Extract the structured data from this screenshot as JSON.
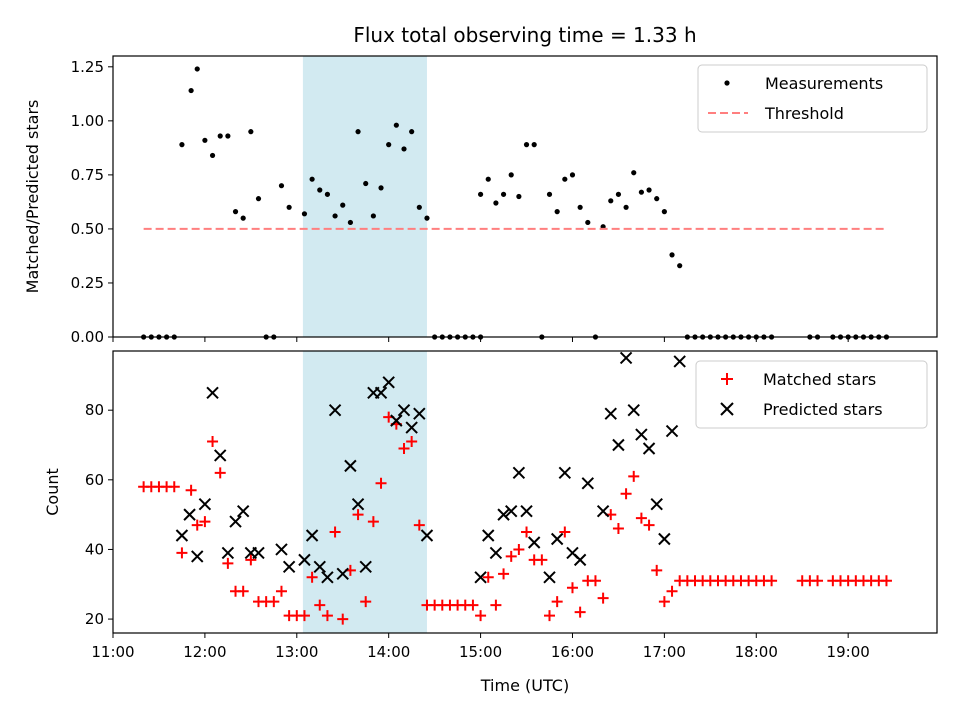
{
  "figure": {
    "title": "Flux total observing time = 1.33 h",
    "xlabel": "Time (UTC)",
    "x_tick_labels": [
      "11:00",
      "12:00",
      "13:00",
      "14:00",
      "15:00",
      "16:00",
      "17:00",
      "18:00",
      "19:00"
    ],
    "colors": {
      "measurement": "#000000",
      "threshold": "#ff7f7f",
      "matched": "#ff0000",
      "predicted": "#000000",
      "highlight_band": "#add8e6"
    }
  },
  "chart_data": [
    {
      "type": "scatter",
      "title": "Flux total observing time = 1.33 h",
      "xlabel": "",
      "ylabel": "Matched/Predicted stars",
      "xlim": [
        "11:00",
        "19:58"
      ],
      "ylim": [
        0,
        1.3
      ],
      "y_ticks": [
        "0.00",
        "0.25",
        "0.50",
        "0.75",
        "1.00",
        "1.25"
      ],
      "highlight_band": {
        "from": "13:04",
        "to": "14:25"
      },
      "legend": {
        "placement": "top-right",
        "entries": [
          "Measurements",
          "Threshold"
        ]
      },
      "threshold": {
        "name": "Threshold",
        "y": 0.5,
        "x_from": "11:20",
        "x_to": "19:25",
        "style": "dashed"
      },
      "series": [
        {
          "name": "Measurements",
          "marker": "dot",
          "points": [
            [
              "11:20",
              0
            ],
            [
              "11:25",
              0
            ],
            [
              "11:30",
              0
            ],
            [
              "11:35",
              0
            ],
            [
              "11:40",
              0
            ],
            [
              "11:45",
              0.89
            ],
            [
              "11:51",
              1.14
            ],
            [
              "11:55",
              1.24
            ],
            [
              "12:00",
              0.91
            ],
            [
              "12:05",
              0.84
            ],
            [
              "12:10",
              0.93
            ],
            [
              "12:15",
              0.93
            ],
            [
              "12:20",
              0.58
            ],
            [
              "12:25",
              0.55
            ],
            [
              "12:30",
              0.95
            ],
            [
              "12:35",
              0.64
            ],
            [
              "12:40",
              0
            ],
            [
              "12:45",
              0
            ],
            [
              "12:50",
              0.7
            ],
            [
              "12:55",
              0.6
            ],
            [
              "13:05",
              0.57
            ],
            [
              "13:10",
              0.73
            ],
            [
              "13:15",
              0.68
            ],
            [
              "13:20",
              0.66
            ],
            [
              "13:25",
              0.56
            ],
            [
              "13:30",
              0.61
            ],
            [
              "13:35",
              0.53
            ],
            [
              "13:40",
              0.95
            ],
            [
              "13:45",
              0.71
            ],
            [
              "13:50",
              0.56
            ],
            [
              "13:55",
              0.69
            ],
            [
              "14:00",
              0.89
            ],
            [
              "14:05",
              0.98
            ],
            [
              "14:10",
              0.87
            ],
            [
              "14:15",
              0.95
            ],
            [
              "14:20",
              0.6
            ],
            [
              "14:25",
              0.55
            ],
            [
              "14:30",
              0
            ],
            [
              "14:35",
              0
            ],
            [
              "14:40",
              0
            ],
            [
              "14:45",
              0
            ],
            [
              "14:50",
              0
            ],
            [
              "14:55",
              0
            ],
            [
              "15:00",
              0
            ],
            [
              "15:00",
              0.66
            ],
            [
              "15:05",
              0.73
            ],
            [
              "15:10",
              0.62
            ],
            [
              "15:15",
              0.66
            ],
            [
              "15:20",
              0.75
            ],
            [
              "15:25",
              0.65
            ],
            [
              "15:30",
              0.89
            ],
            [
              "15:35",
              0.89
            ],
            [
              "15:40",
              0
            ],
            [
              "15:45",
              0.66
            ],
            [
              "15:50",
              0.58
            ],
            [
              "15:55",
              0.73
            ],
            [
              "16:00",
              0.75
            ],
            [
              "16:05",
              0.6
            ],
            [
              "16:10",
              0.53
            ],
            [
              "16:15",
              0
            ],
            [
              "16:20",
              0.51
            ],
            [
              "16:25",
              0.63
            ],
            [
              "16:30",
              0.66
            ],
            [
              "16:35",
              0.6
            ],
            [
              "16:40",
              0.76
            ],
            [
              "16:45",
              0.67
            ],
            [
              "16:50",
              0.68
            ],
            [
              "16:55",
              0.64
            ],
            [
              "17:00",
              0.58
            ],
            [
              "17:05",
              0.38
            ],
            [
              "17:10",
              0.33
            ],
            [
              "17:15",
              0
            ],
            [
              "17:20",
              0
            ],
            [
              "17:25",
              0
            ],
            [
              "17:30",
              0
            ],
            [
              "17:35",
              0
            ],
            [
              "17:40",
              0
            ],
            [
              "17:45",
              0
            ],
            [
              "17:50",
              0
            ],
            [
              "17:55",
              0
            ],
            [
              "18:00",
              0
            ],
            [
              "18:05",
              0
            ],
            [
              "18:10",
              0
            ],
            [
              "18:35",
              0
            ],
            [
              "18:40",
              0
            ],
            [
              "18:50",
              0
            ],
            [
              "18:55",
              0
            ],
            [
              "19:00",
              0
            ],
            [
              "19:05",
              0
            ],
            [
              "19:10",
              0
            ],
            [
              "19:15",
              0
            ],
            [
              "19:20",
              0
            ],
            [
              "19:25",
              0
            ]
          ]
        }
      ]
    },
    {
      "type": "scatter",
      "title": "",
      "xlabel": "Time (UTC)",
      "ylabel": "Count",
      "xlim": [
        "11:00",
        "19:58"
      ],
      "ylim": [
        16,
        97
      ],
      "y_ticks": [
        "20",
        "40",
        "60",
        "80"
      ],
      "highlight_band": {
        "from": "13:04",
        "to": "14:25"
      },
      "legend": {
        "placement": "top-right",
        "entries": [
          "Matched stars",
          "Predicted stars"
        ]
      },
      "series": [
        {
          "name": "Matched stars",
          "marker": "plus",
          "points": [
            [
              "11:20",
              58
            ],
            [
              "11:25",
              58
            ],
            [
              "11:30",
              58
            ],
            [
              "11:35",
              58
            ],
            [
              "11:40",
              58
            ],
            [
              "11:45",
              39
            ],
            [
              "11:51",
              57
            ],
            [
              "11:55",
              47
            ],
            [
              "12:00",
              48
            ],
            [
              "12:05",
              71
            ],
            [
              "12:10",
              62
            ],
            [
              "12:15",
              36
            ],
            [
              "12:20",
              28
            ],
            [
              "12:25",
              28
            ],
            [
              "12:30",
              37
            ],
            [
              "12:35",
              25
            ],
            [
              "12:40",
              25
            ],
            [
              "12:45",
              25
            ],
            [
              "12:50",
              28
            ],
            [
              "12:55",
              21
            ],
            [
              "13:00",
              21
            ],
            [
              "13:05",
              21
            ],
            [
              "13:10",
              32
            ],
            [
              "13:15",
              24
            ],
            [
              "13:20",
              21
            ],
            [
              "13:25",
              45
            ],
            [
              "13:30",
              20
            ],
            [
              "13:35",
              34
            ],
            [
              "13:40",
              50
            ],
            [
              "13:45",
              25
            ],
            [
              "13:50",
              48
            ],
            [
              "13:55",
              59
            ],
            [
              "14:00",
              78
            ],
            [
              "14:05",
              76
            ],
            [
              "14:10",
              69
            ],
            [
              "14:15",
              71
            ],
            [
              "14:20",
              47
            ],
            [
              "14:25",
              24
            ],
            [
              "14:30",
              24
            ],
            [
              "14:35",
              24
            ],
            [
              "14:40",
              24
            ],
            [
              "14:45",
              24
            ],
            [
              "14:50",
              24
            ],
            [
              "14:55",
              24
            ],
            [
              "15:00",
              21
            ],
            [
              "15:05",
              32
            ],
            [
              "15:10",
              24
            ],
            [
              "15:15",
              33
            ],
            [
              "15:20",
              38
            ],
            [
              "15:25",
              40
            ],
            [
              "15:30",
              45
            ],
            [
              "15:35",
              37
            ],
            [
              "15:40",
              37
            ],
            [
              "15:45",
              21
            ],
            [
              "15:50",
              25
            ],
            [
              "15:55",
              45
            ],
            [
              "16:00",
              29
            ],
            [
              "16:05",
              22
            ],
            [
              "16:10",
              31
            ],
            [
              "16:15",
              31
            ],
            [
              "16:20",
              26
            ],
            [
              "16:25",
              50
            ],
            [
              "16:30",
              46
            ],
            [
              "16:35",
              56
            ],
            [
              "16:40",
              61
            ],
            [
              "16:45",
              49
            ],
            [
              "16:50",
              47
            ],
            [
              "16:55",
              34
            ],
            [
              "17:00",
              25
            ],
            [
              "17:05",
              28
            ],
            [
              "17:10",
              31
            ],
            [
              "17:15",
              31
            ],
            [
              "17:20",
              31
            ],
            [
              "17:25",
              31
            ],
            [
              "17:30",
              31
            ],
            [
              "17:35",
              31
            ],
            [
              "17:40",
              31
            ],
            [
              "17:45",
              31
            ],
            [
              "17:50",
              31
            ],
            [
              "17:55",
              31
            ],
            [
              "18:00",
              31
            ],
            [
              "18:05",
              31
            ],
            [
              "18:10",
              31
            ],
            [
              "18:30",
              31
            ],
            [
              "18:35",
              31
            ],
            [
              "18:40",
              31
            ],
            [
              "18:50",
              31
            ],
            [
              "18:55",
              31
            ],
            [
              "19:00",
              31
            ],
            [
              "19:05",
              31
            ],
            [
              "19:10",
              31
            ],
            [
              "19:15",
              31
            ],
            [
              "19:20",
              31
            ],
            [
              "19:25",
              31
            ]
          ]
        },
        {
          "name": "Predicted stars",
          "marker": "x",
          "points": [
            [
              "11:45",
              44
            ],
            [
              "11:50",
              50
            ],
            [
              "11:55",
              38
            ],
            [
              "12:00",
              53
            ],
            [
              "12:05",
              85
            ],
            [
              "12:10",
              67
            ],
            [
              "12:15",
              39
            ],
            [
              "12:20",
              48
            ],
            [
              "12:25",
              51
            ],
            [
              "12:30",
              39
            ],
            [
              "12:35",
              39
            ],
            [
              "12:50",
              40
            ],
            [
              "12:55",
              35
            ],
            [
              "13:05",
              37
            ],
            [
              "13:10",
              44
            ],
            [
              "13:15",
              35
            ],
            [
              "13:20",
              32
            ],
            [
              "13:25",
              80
            ],
            [
              "13:30",
              33
            ],
            [
              "13:35",
              64
            ],
            [
              "13:40",
              53
            ],
            [
              "13:45",
              35
            ],
            [
              "13:50",
              85
            ],
            [
              "13:55",
              85
            ],
            [
              "14:00",
              88
            ],
            [
              "14:05",
              77
            ],
            [
              "14:10",
              80
            ],
            [
              "14:15",
              75
            ],
            [
              "14:20",
              79
            ],
            [
              "14:25",
              44
            ],
            [
              "15:00",
              32
            ],
            [
              "15:05",
              44
            ],
            [
              "15:10",
              39
            ],
            [
              "15:15",
              50
            ],
            [
              "15:20",
              51
            ],
            [
              "15:25",
              62
            ],
            [
              "15:30",
              51
            ],
            [
              "15:35",
              42
            ],
            [
              "15:45",
              32
            ],
            [
              "15:50",
              43
            ],
            [
              "15:55",
              62
            ],
            [
              "16:00",
              39
            ],
            [
              "16:05",
              37
            ],
            [
              "16:10",
              59
            ],
            [
              "16:20",
              51
            ],
            [
              "16:25",
              79
            ],
            [
              "16:30",
              70
            ],
            [
              "16:35",
              95
            ],
            [
              "16:40",
              80
            ],
            [
              "16:45",
              73
            ],
            [
              "16:50",
              69
            ],
            [
              "16:55",
              53
            ],
            [
              "17:00",
              43
            ],
            [
              "17:05",
              74
            ],
            [
              "17:10",
              94
            ]
          ]
        }
      ]
    }
  ]
}
